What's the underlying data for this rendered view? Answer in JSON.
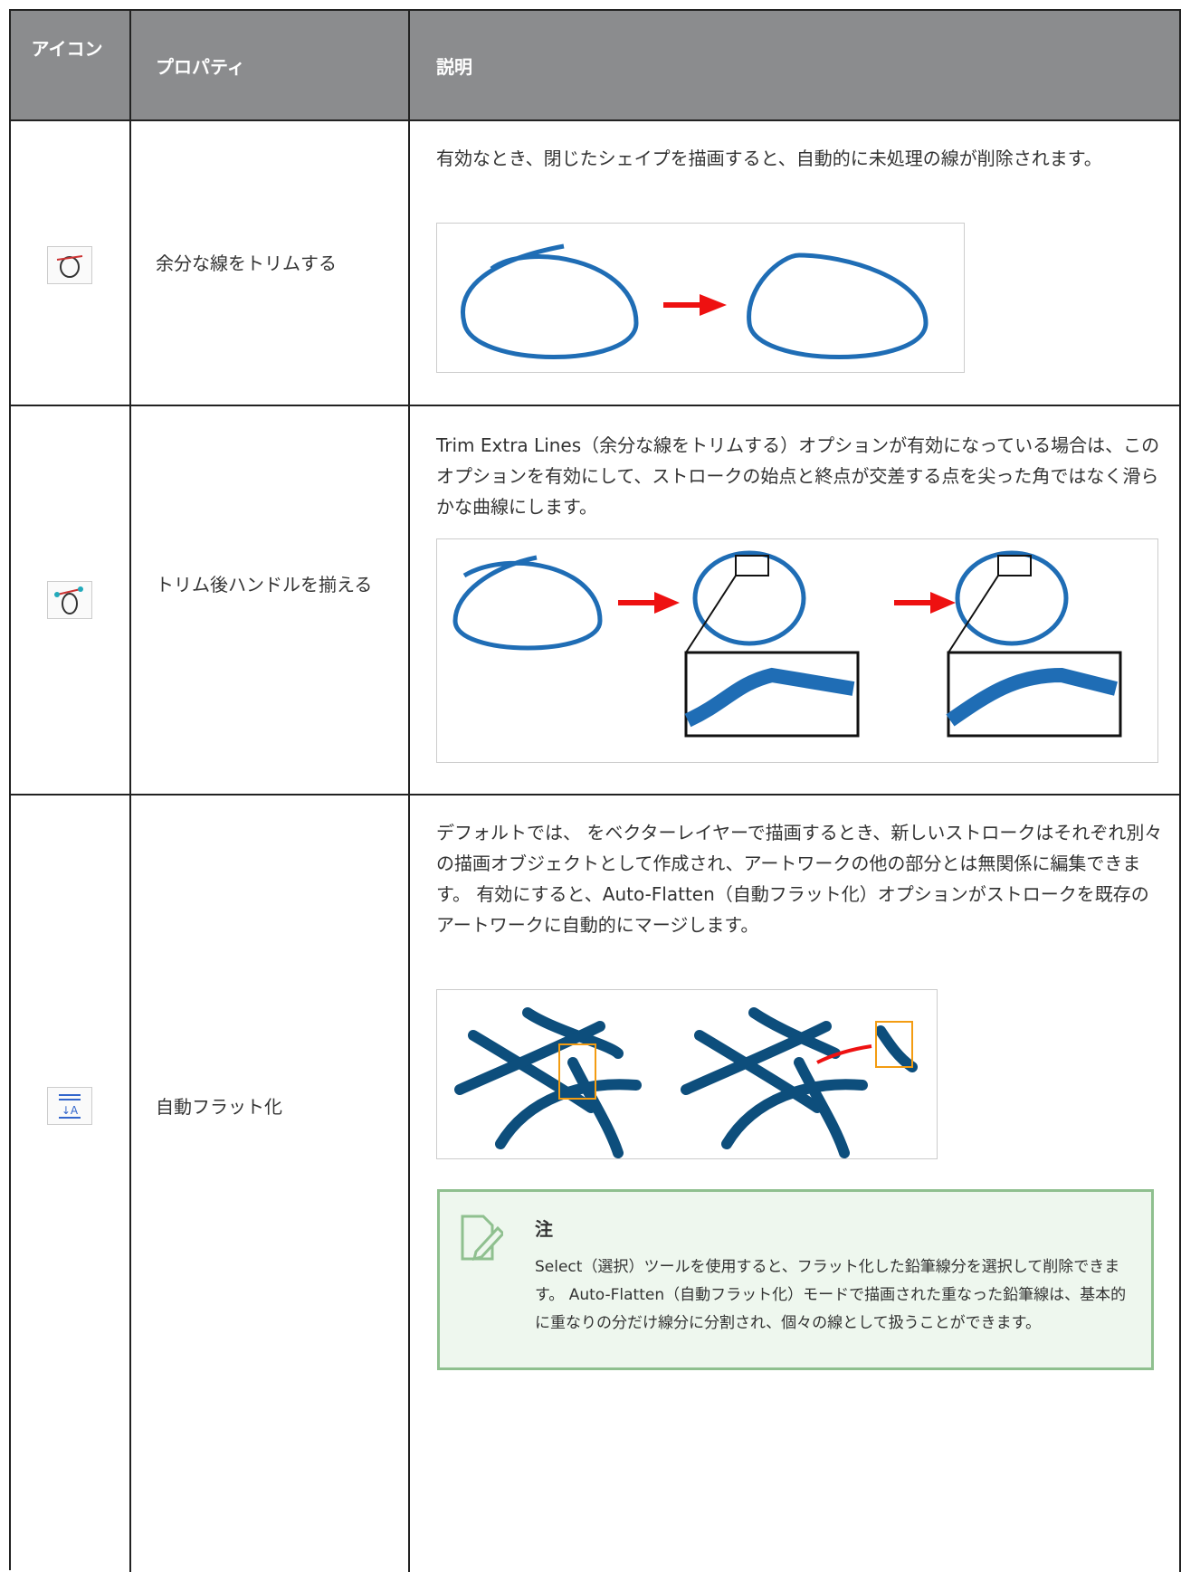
{
  "header": {
    "icon": "アイコン",
    "property": "プロパティ",
    "description": "説明"
  },
  "rows": [
    {
      "property": "余分な線をトリムする",
      "description": "有効なとき、閉じたシェイプを描画すると、自動的に未処理の線が削除されます。"
    },
    {
      "property": "トリム後ハンドルを揃える",
      "description": "Trim Extra Lines（余分な線をトリムする）オプションが有効になっている場合は、このオプションを有効にして、ストロークの始点と終点が交差する点を尖った角ではなく滑らかな曲線にします。"
    },
    {
      "property": "自動フラット化",
      "description": "デフォルトでは、 をベクターレイヤーで描画するとき、新しいストロークはそれぞれ別々の描画オブジェクトとして作成され、アートワークの他の部分とは無関係に編集できます。 有効にすると、Auto-Flatten（自動フラット化）オプションがストロークを既存のアートワークに自動的にマージします。",
      "note": {
        "title": "注",
        "text": "Select（選択）ツールを使用すると、フラット化した鉛筆線分を選択して削除できます。 Auto-Flatten（自動フラット化）モードで描画された重なった鉛筆線は、基本的に重なりの分だけ線分に分割され、個々の線として扱うことができます。"
      }
    }
  ]
}
